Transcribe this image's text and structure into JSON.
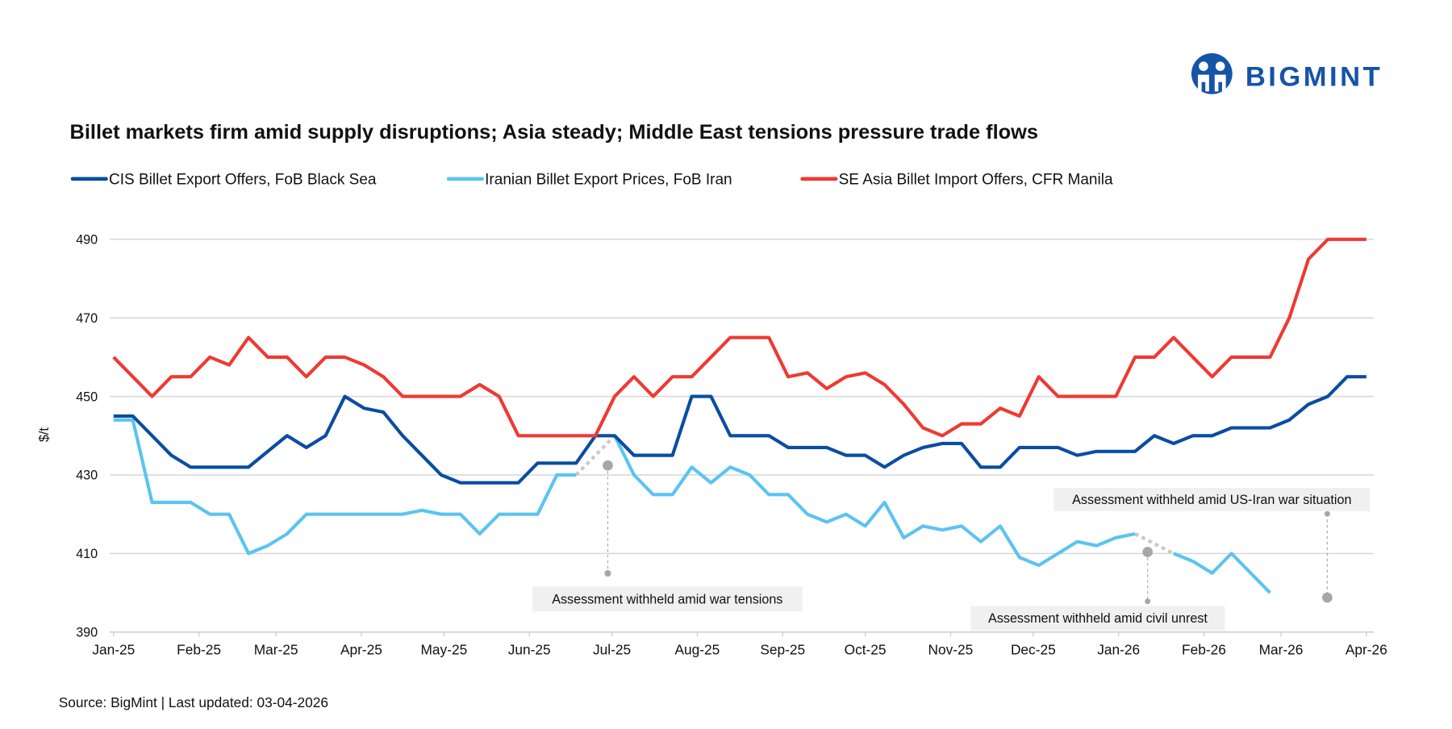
{
  "brand": {
    "name": "BIGMINT",
    "color": "#1554a8"
  },
  "footer": {
    "source": "Source: BigMint | Last updated: 03-04-2026"
  },
  "chart_data": {
    "type": "line",
    "title": "Billet markets firm amid supply disruptions; Asia steady; Middle East tensions pressure trade flows",
    "ylabel": "$/t",
    "xlabel": "",
    "ylim": [
      390,
      490
    ],
    "yticks": [
      "390",
      "410",
      "430",
      "450",
      "470",
      "490"
    ],
    "xticks": [
      "Jan-25",
      "Feb-25",
      "Mar-25",
      "Apr-25",
      "May-25",
      "Jun-25",
      "Jul-25",
      "Aug-25",
      "Sep-25",
      "Oct-25",
      "Nov-25",
      "Dec-25",
      "Jan-26",
      "Feb-26",
      "Mar-26",
      "Apr-26"
    ],
    "grid": "horizontal",
    "legend": "top",
    "x": [
      "2025-01-01",
      "2025-01-08",
      "2025-01-15",
      "2025-01-22",
      "2025-01-29",
      "2025-02-05",
      "2025-02-12",
      "2025-02-19",
      "2025-02-26",
      "2025-03-05",
      "2025-03-12",
      "2025-03-19",
      "2025-03-26",
      "2025-04-02",
      "2025-04-09",
      "2025-04-16",
      "2025-04-23",
      "2025-04-30",
      "2025-05-07",
      "2025-05-14",
      "2025-05-21",
      "2025-05-28",
      "2025-06-04",
      "2025-06-11",
      "2025-06-18",
      "2025-06-25",
      "2025-07-02",
      "2025-07-09",
      "2025-07-16",
      "2025-07-23",
      "2025-07-30",
      "2025-08-06",
      "2025-08-13",
      "2025-08-20",
      "2025-08-27",
      "2025-09-03",
      "2025-09-10",
      "2025-09-17",
      "2025-09-24",
      "2025-10-01",
      "2025-10-08",
      "2025-10-15",
      "2025-10-22",
      "2025-10-29",
      "2025-11-05",
      "2025-11-12",
      "2025-11-19",
      "2025-11-26",
      "2025-12-03",
      "2025-12-10",
      "2025-12-17",
      "2025-12-24",
      "2025-12-31",
      "2026-01-07",
      "2026-01-14",
      "2026-01-21",
      "2026-01-28",
      "2026-02-04",
      "2026-02-11",
      "2026-02-18",
      "2026-02-25",
      "2026-03-04",
      "2026-03-11",
      "2026-03-18",
      "2026-03-25",
      "2026-04-01"
    ],
    "series": [
      {
        "name": "CIS Billet Export Offers, FoB Black Sea",
        "color": "#0a4da2",
        "values": [
          445,
          445,
          440,
          435,
          432,
          432,
          432,
          432,
          436,
          440,
          437,
          440,
          450,
          447,
          446,
          440,
          435,
          430,
          428,
          428,
          428,
          428,
          433,
          433,
          433,
          440,
          440,
          435,
          435,
          435,
          450,
          450,
          440,
          440,
          440,
          437,
          437,
          437,
          435,
          435,
          432,
          435,
          437,
          438,
          438,
          432,
          432,
          437,
          437,
          437,
          435,
          436,
          436,
          436,
          440,
          438,
          440,
          440,
          442,
          442,
          442,
          444,
          448,
          450,
          455,
          455
        ]
      },
      {
        "name": "Iranian Billet Export Prices, FoB Iran",
        "color": "#5bc4f0",
        "values": [
          444,
          444,
          423,
          423,
          423,
          420,
          420,
          410,
          412,
          415,
          420,
          420,
          420,
          420,
          420,
          420,
          421,
          420,
          420,
          415,
          420,
          420,
          420,
          430,
          430,
          null,
          440,
          430,
          425,
          425,
          432,
          428,
          432,
          430,
          425,
          425,
          420,
          418,
          420,
          417,
          423,
          414,
          417,
          416,
          417,
          413,
          417,
          409,
          407,
          410,
          413,
          412,
          414,
          415,
          null,
          410,
          408,
          405,
          410,
          405,
          400,
          null,
          null,
          null,
          null,
          null
        ]
      },
      {
        "name": "SE Asia Billet Import Offers, CFR Manila",
        "color": "#ee3a33",
        "values": [
          460,
          455,
          450,
          455,
          455,
          460,
          458,
          465,
          460,
          460,
          455,
          460,
          460,
          458,
          455,
          450,
          450,
          450,
          450,
          453,
          450,
          440,
          440,
          440,
          440,
          440,
          450,
          455,
          450,
          455,
          455,
          460,
          465,
          465,
          465,
          455,
          456,
          452,
          455,
          456,
          453,
          448,
          442,
          440,
          443,
          443,
          447,
          445,
          455,
          450,
          450,
          450,
          450,
          460,
          460,
          465,
          460,
          455,
          460,
          460,
          460,
          470,
          485,
          490,
          490,
          490
        ]
      }
    ],
    "annotations": [
      {
        "text": "Assessment withheld amid  war tensions"
      },
      {
        "text": "Assessment withheld amid civil unrest"
      },
      {
        "text": "Assessment withheld amid US-Iran war situation"
      }
    ]
  }
}
